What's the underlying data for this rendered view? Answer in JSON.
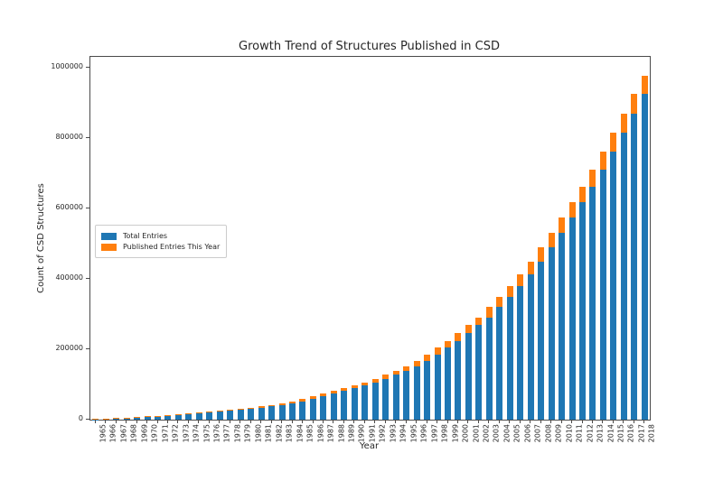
{
  "chart_data": {
    "type": "bar",
    "stacked": true,
    "title": "Growth Trend of Structures Published in CSD",
    "xlabel": "Year",
    "ylabel": "Count of CSD Structures",
    "grid": false,
    "ylim": [
      0,
      1030000
    ],
    "yticks": [
      0,
      200000,
      400000,
      600000,
      800000,
      1000000
    ],
    "ytick_labels": [
      "0",
      "200000",
      "400000",
      "600000",
      "800000",
      "1000000"
    ],
    "legend": {
      "position": "center-left",
      "entries": [
        {
          "label": "Total Entries",
          "color": "#1f77b4"
        },
        {
          "label": "Published Entries This Year",
          "color": "#ff7f0e"
        }
      ]
    },
    "categories": [
      1965,
      1966,
      1967,
      1968,
      1969,
      1970,
      1971,
      1972,
      1973,
      1974,
      1975,
      1976,
      1977,
      1978,
      1979,
      1980,
      1981,
      1982,
      1983,
      1984,
      1985,
      1986,
      1987,
      1988,
      1989,
      1990,
      1991,
      1992,
      1993,
      1994,
      1995,
      1996,
      1997,
      1998,
      1999,
      2000,
      2001,
      2002,
      2003,
      2004,
      2005,
      2006,
      2007,
      2008,
      2009,
      2010,
      2011,
      2012,
      2013,
      2014,
      2015,
      2016,
      2017,
      2018
    ],
    "series": [
      {
        "name": "Total Entries",
        "color": "#1f77b4",
        "values": [
          800,
          1500,
          2900,
          4400,
          6000,
          7700,
          9500,
          11400,
          13400,
          15500,
          17700,
          20000,
          22400,
          24900,
          27600,
          30700,
          34000,
          38000,
          42000,
          47000,
          52500,
          59000,
          66000,
          73500,
          81500,
          89000,
          97000,
          106000,
          116000,
          127000,
          139000,
          150500,
          166000,
          184000,
          204000,
          224000,
          246000,
          268000,
          291000,
          320000,
          348000,
          379000,
          413000,
          450000,
          490000,
          532000,
          574000,
          619000,
          662000,
          711000,
          762000,
          815000,
          869000,
          925000
        ]
      },
      {
        "name": "Published Entries This Year",
        "color": "#ff7f0e",
        "values": [
          700,
          1400,
          1500,
          1600,
          1700,
          1800,
          1900,
          2000,
          2100,
          2200,
          2300,
          2400,
          2500,
          2700,
          3100,
          3300,
          4000,
          4000,
          5000,
          5500,
          6500,
          7000,
          7500,
          8000,
          7500,
          8000,
          9000,
          10000,
          11000,
          12000,
          11500,
          15500,
          18000,
          20000,
          20000,
          22000,
          22000,
          23000,
          29000,
          28000,
          31000,
          34000,
          37000,
          40000,
          42000,
          42000,
          45000,
          43000,
          49000,
          51000,
          53000,
          54000,
          56000,
          51000
        ]
      }
    ]
  }
}
